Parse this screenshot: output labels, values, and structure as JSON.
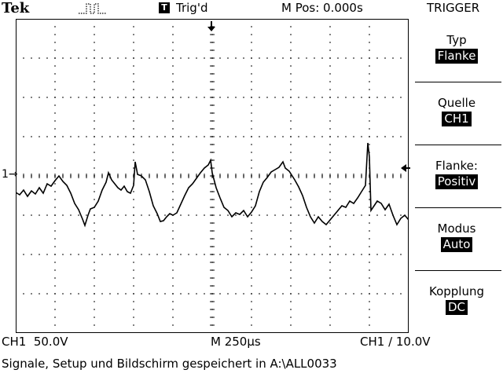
{
  "header": {
    "brand": "Tek",
    "pulse_icon": "single-pulse-icon",
    "trigger_box_glyph": "T",
    "trigger_status": "Trig'd",
    "m_pos": "M Pos: 0.000s",
    "menu_title": "TRIGGER"
  },
  "screen": {
    "grid": true,
    "divisions_x": 10,
    "divisions_y": 8,
    "ch1_marker": "1→",
    "colors": {
      "trace": "#000000",
      "grid": "#000000",
      "background": "#ffffff"
    }
  },
  "side_menu": {
    "items": [
      {
        "label": "Typ",
        "value": "Flanke"
      },
      {
        "label": "Quelle",
        "value": "CH1"
      },
      {
        "label": "Flanke:",
        "value": "Positiv"
      },
      {
        "label": "Modus",
        "value": "Auto"
      },
      {
        "label": "Kopplung",
        "value": "DC"
      }
    ]
  },
  "status": {
    "ch1_scale": "CH1  50.0V",
    "timebase": "M 250µs",
    "trigger_info": "CH1 ∕ 10.0V"
  },
  "message": "Signale, Setup und Bildschirm gespeichert in A:\\ALL0033"
}
